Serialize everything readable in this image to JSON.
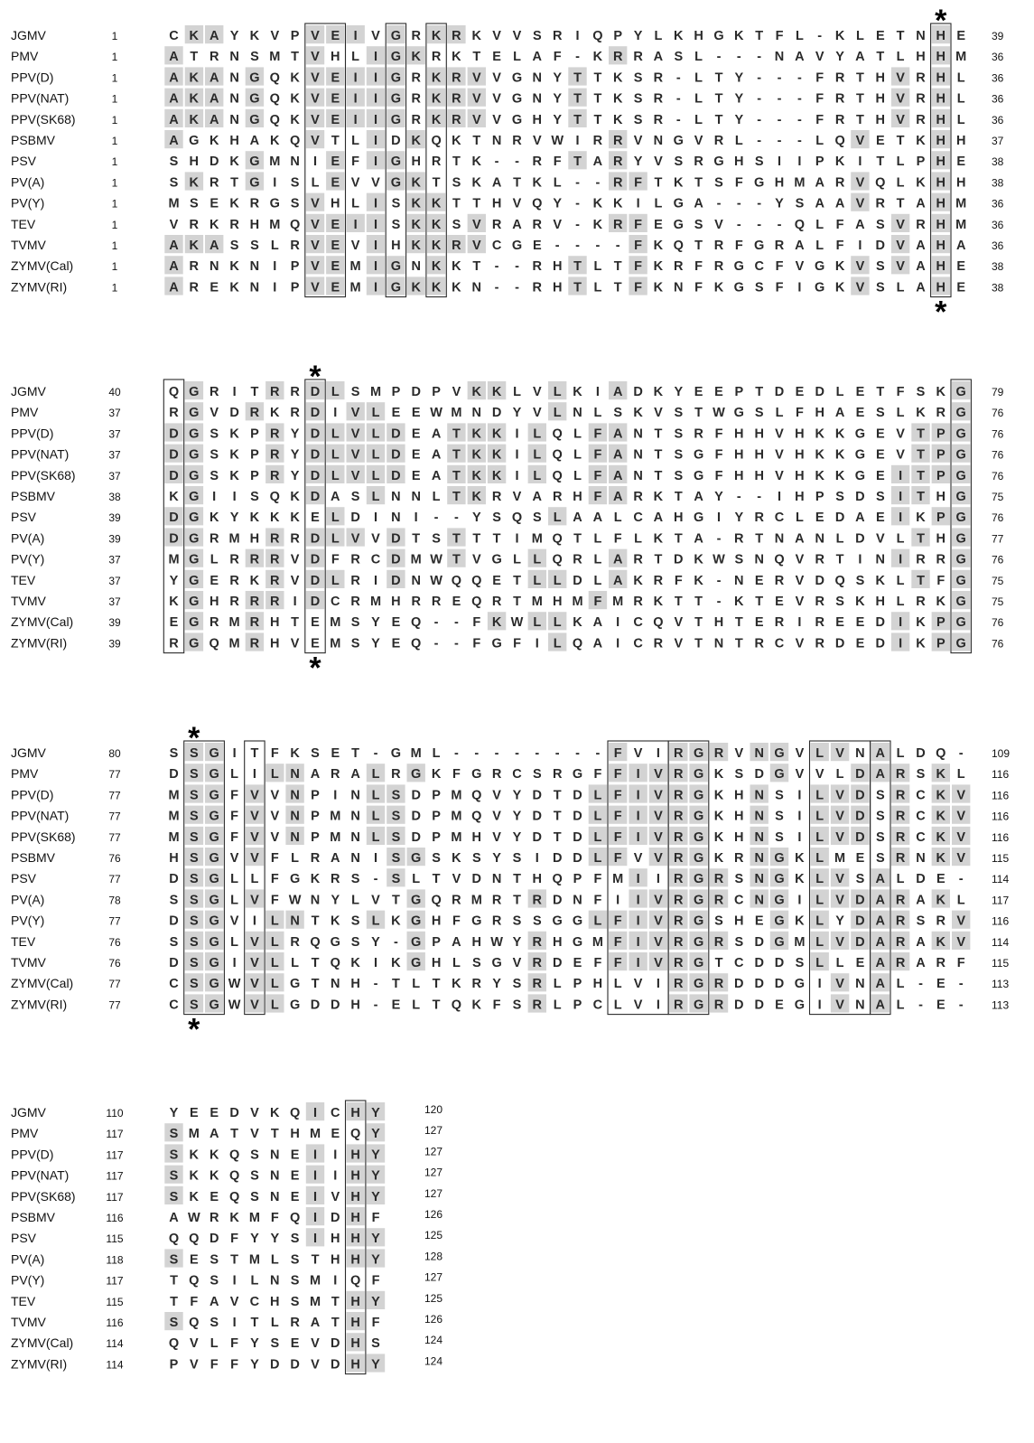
{
  "names": [
    "JGMV",
    "PMV",
    "PPV(D)",
    "PPV(NAT)",
    "PPV(SK68)",
    "PSBMV",
    "PSV",
    "PV(A)",
    "PV(Y)",
    "TEV",
    "TVMV",
    "ZYMV(Cal)",
    "ZYMV(RI)"
  ],
  "blocks": [
    {
      "starts": [
        1,
        1,
        1,
        1,
        1,
        1,
        1,
        1,
        1,
        1,
        1,
        1,
        1
      ],
      "ends": [
        39,
        36,
        36,
        36,
        36,
        37,
        38,
        38,
        36,
        36,
        36,
        38,
        38
      ],
      "seqs": [
        "CKAYKVPVEIVGRKRKVVSRIQPYLKHGKTFL-KLETNHE",
        "ATRNSMTVHLIGKRKTELAF-KRRASL---NAVYATLHHM",
        "AKANGQKVEIIGRKRVVGNYTTKSR-LTY---FRTHVRHL",
        "AKANGQKVEIIGRKRVVGNYTTKSR-LTY---FRTHVRHL",
        "AKANGQKVEIIGRKRVVGHYTTKSR-LTY---FRTHVRHL",
        "AGKHAKQVTLIDKQKTNRVWIRRVNGVRL---LQVETKHH",
        "SHDKGMNIEFIGHRTK--RFTARYVSRGHSIIPKITLPHE",
        "SKRTGISLEVVGKTSKATKL--RFTKTSFGHMARVQLKHH",
        "MSEKRGSVHLISKKTTHVQY-KKILGA---YSAAVRTAHM",
        "VRKRHMQVEIISKKSVRARV-KRFEGSV---QLFASVRHM",
        "AKASSLRVEVIHKKRVCGE----FKQTRFGRALFIDVAHA",
        "ARNKNIPVEMIGNKKT--RHTLTFKRFRGCFVGKVSVAHE",
        "AREKNIPVEMIGKKKN--RHTLTFKNFKGSFIGKVSLAHE"
      ]
    },
    {
      "starts": [
        40,
        37,
        37,
        37,
        37,
        38,
        39,
        39,
        37,
        37,
        37,
        39,
        39
      ],
      "ends": [
        79,
        76,
        76,
        76,
        76,
        75,
        76,
        77,
        76,
        75,
        75,
        76,
        76
      ],
      "seqs": [
        "QGRITRRDLSMPDPVKKLVLKIADKYEEPTDEDLETFSKG",
        "RGVDRKRDIVLEEWMNDYVLNLSKVSTWGSLFHAESLKRG",
        "DGSKPRYDLVLDEATKKILQLFANTSRFHHVHKKGEVTPG",
        "DGSKPRYDLVLDEATKKILQLFANTSGFHHVHKKGEVTPG",
        "DGSKPRYDLVLDEATKKILQLFANTSGFHHVHKKGEITPG",
        "KGIISQKDASLNNLTKRVARHFARKTAY--IHPSDSITHG",
        "DGKYKKKELDINI--YSQSLAALCAHGIYRCLEDAEIKPG",
        "DGRMHRRDLVVDTSTTTIMQTLFLKTA-RTNANLDVLTHG",
        "MGLRRRVDFRCDMWTVGLLQRLARTDKWSNQVRTINIRRG",
        "YGERKRVDLRIDNWQQETLLDLAKRFK-NERVDQSKLTFG",
        "KGHRRRIDCRMHRREQRTMHMFMRKTT-KTEVRSKHLRKG",
        "EGRMRHTEMSYEQ--FKWLLKAICQVTHTERIREEDIKPG",
        "RGQMRHVEMSYEQ--FGFILQAICRVTNTRCVRDEDIKPG"
      ]
    },
    {
      "starts": [
        80,
        77,
        77,
        77,
        77,
        76,
        77,
        78,
        77,
        76,
        76,
        77,
        77
      ],
      "ends": [
        109,
        116,
        116,
        116,
        116,
        115,
        114,
        117,
        116,
        114,
        115,
        113,
        113
      ],
      "seqs": [
        "SSGITFKSET-GML--------FVIRGRVNGVLVNALDQ-",
        "DSGLILNARALRGKFGRCSRGFFIVRGKSDGVVLDARSKL",
        "MSGFVVNPINLSDPMQVYDTDLFIVRGKHNSILVDSRCKV",
        "MSGFVVNPMNLSDPMQVYDTDLFIVRGKHNSILVDSRCKV",
        "MSGFVVNPMNLSDPMHVYDTDLFIVRGKHNSILVDSRCKV",
        "HSGVVFLRANISGSKSYSIDDLFVVRGKRNGKLMESRNKV",
        "DSGLLFGKRS-SLTVDNTHQPFMIIRGRSNGKLVSALDE-",
        "SSGLVFWNYLVTGQRMRTRDNFIIVRGRCNGILVDARAKL",
        "DSGVILNTKSLKGHFGRSSGGLFIVRGSHEGKLYDARSRV",
        "SSGLVLRQGSY-GPAHWYRHGMFIVRGRSDGMLVDARAKV",
        "DSGIVLLTQKIKGHLSGVRDEFFIVRGTCDDSLLEARARF",
        "CSGWVLGTNH-TLTKRYSRLPHLVIRGRDDDGIVNAL-E-",
        "CSGWVLGDDH-ELTQKFSRLPCLVIRGRDDEGIVNAL-E-"
      ]
    },
    {
      "starts": [
        110,
        117,
        117,
        117,
        117,
        116,
        115,
        118,
        117,
        115,
        116,
        114,
        114
      ],
      "ends": [
        120,
        127,
        127,
        127,
        127,
        126,
        125,
        128,
        127,
        125,
        126,
        124,
        124
      ],
      "seqs": [
        "YEEDVKQICHY",
        "SMATVTHMEQY",
        "SKKQSNEIIHY",
        "SKKQSNEIIHY",
        "SKEQSNEIVHY",
        "AWRKMFQIDHF",
        "QQDFYYSIHHY",
        "SESTMLSTHHY",
        "TQSILNSMIQF",
        "TFAVCHSMTHY",
        "SQSITLRATHF",
        "QVLFYSEVDHS",
        "PVFFYDDVDHY"
      ]
    }
  ]
}
